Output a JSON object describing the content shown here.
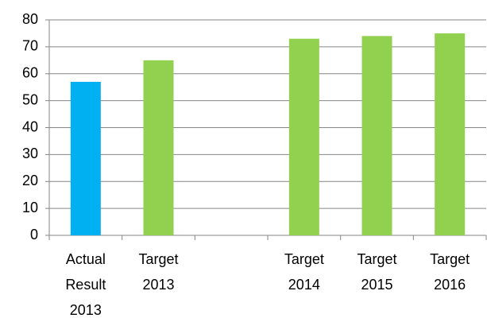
{
  "chart_data": {
    "type": "bar",
    "categories": [
      "Actual Result 2013",
      "Target 2013",
      null,
      "Target 2014",
      "Target 2015",
      "Target 2016"
    ],
    "values": [
      57,
      65,
      null,
      73,
      74,
      75
    ],
    "colors": [
      "#00b0f0",
      "#92d050",
      "#92d050",
      "#92d050",
      "#92d050",
      "#92d050"
    ],
    "ylim": [
      0,
      80
    ],
    "yticks": [
      0,
      10,
      20,
      30,
      40,
      50,
      60,
      70,
      80
    ],
    "grid": true
  }
}
